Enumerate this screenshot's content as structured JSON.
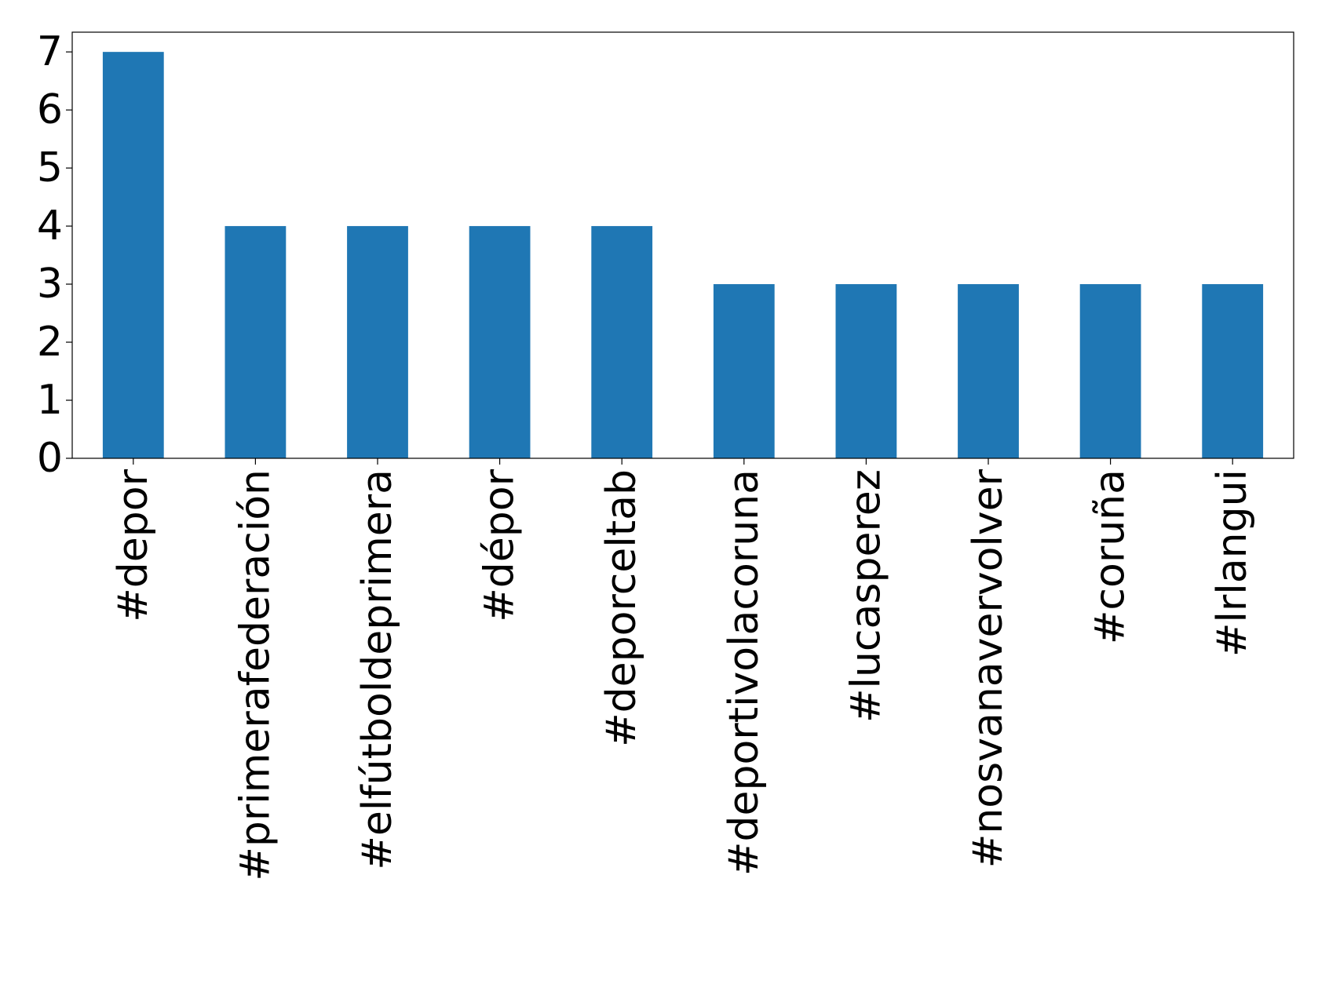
{
  "chart_data": {
    "type": "bar",
    "categories": [
      "#depor",
      "#primerafederación",
      "#elfútboldeprimera",
      "#dépor",
      "#deporceltab",
      "#deportivolacoruna",
      "#lucasperez",
      "#nosvanavervolver",
      "#coruña",
      "#lrlangui"
    ],
    "values": [
      7,
      4,
      4,
      4,
      4,
      3,
      3,
      3,
      3,
      3
    ],
    "color": "#1f77b4",
    "ylim": [
      0,
      7.34
    ],
    "yticks": [
      0,
      1,
      2,
      3,
      4,
      5,
      6,
      7
    ],
    "grid": false
  }
}
